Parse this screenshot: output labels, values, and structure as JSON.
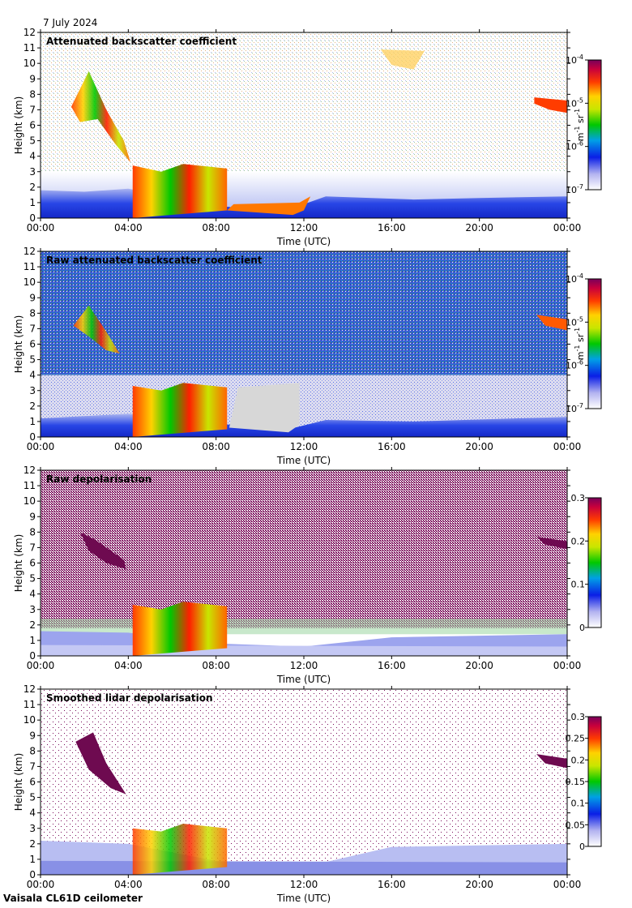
{
  "date": "7 July 2024",
  "footer": "Vaisala CL61D ceilometer",
  "chart_data": [
    {
      "type": "heatmap",
      "title": "Attenuated backscatter coefficient",
      "xlabel": "Time (UTC)",
      "ylabel": "Height (km)",
      "x_ticks": [
        "00:00",
        "04:00",
        "08:00",
        "12:00",
        "16:00",
        "20:00",
        "00:00"
      ],
      "y_ticks": [
        "0",
        "1",
        "2",
        "3",
        "4",
        "5",
        "6",
        "7",
        "8",
        "9",
        "10",
        "11",
        "12"
      ],
      "ylim": [
        0,
        12
      ],
      "colorbar": {
        "scale": "log",
        "ticks": [
          {
            "base": "10",
            "exp": "-4"
          },
          {
            "base": "10",
            "exp": "-5"
          },
          {
            "base": "10",
            "exp": "-6"
          },
          {
            "base": "10",
            "exp": "-7"
          }
        ],
        "unit_base_1": "m",
        "unit_exp_1": "-1",
        "unit_base_2": " sr",
        "unit_exp_2": "-1"
      }
    },
    {
      "type": "heatmap",
      "title": "Raw attenuated backscatter coefficient",
      "xlabel": "Time (UTC)",
      "ylabel": "Height (km)",
      "x_ticks": [
        "00:00",
        "04:00",
        "08:00",
        "12:00",
        "16:00",
        "20:00",
        "00:00"
      ],
      "y_ticks": [
        "0",
        "1",
        "2",
        "3",
        "4",
        "5",
        "6",
        "7",
        "8",
        "9",
        "10",
        "11",
        "12"
      ],
      "ylim": [
        0,
        12
      ],
      "colorbar": {
        "scale": "log",
        "ticks": [
          {
            "base": "10",
            "exp": "-4"
          },
          {
            "base": "10",
            "exp": "-5"
          },
          {
            "base": "10",
            "exp": "-6"
          },
          {
            "base": "10",
            "exp": "-7"
          }
        ],
        "unit_base_1": "m",
        "unit_exp_1": "-1",
        "unit_base_2": " sr",
        "unit_exp_2": "-1"
      }
    },
    {
      "type": "heatmap",
      "title": "Raw depolarisation",
      "xlabel": "Time (UTC)",
      "ylabel": "Height (km)",
      "x_ticks": [
        "00:00",
        "04:00",
        "08:00",
        "12:00",
        "16:00",
        "20:00",
        "00:00"
      ],
      "y_ticks": [
        "0",
        "1",
        "2",
        "3",
        "4",
        "5",
        "6",
        "7",
        "8",
        "9",
        "10",
        "11",
        "12"
      ],
      "ylim": [
        0,
        12
      ],
      "colorbar": {
        "scale": "linear",
        "ticks": [
          "0.3",
          "0.2",
          "0.1",
          "0"
        ]
      }
    },
    {
      "type": "heatmap",
      "title": "Smoothed lidar depolarisation",
      "xlabel": "Time (UTC)",
      "ylabel": "Height (km)",
      "x_ticks": [
        "00:00",
        "04:00",
        "08:00",
        "12:00",
        "16:00",
        "20:00",
        "00:00"
      ],
      "y_ticks": [
        "0",
        "1",
        "2",
        "3",
        "4",
        "5",
        "6",
        "7",
        "8",
        "9",
        "10",
        "11",
        "12"
      ],
      "ylim": [
        0,
        12
      ],
      "colorbar": {
        "scale": "linear",
        "ticks": [
          "0.3",
          "0.25",
          "0.2",
          "0.15",
          "0.1",
          "0.05",
          "0"
        ]
      }
    }
  ]
}
